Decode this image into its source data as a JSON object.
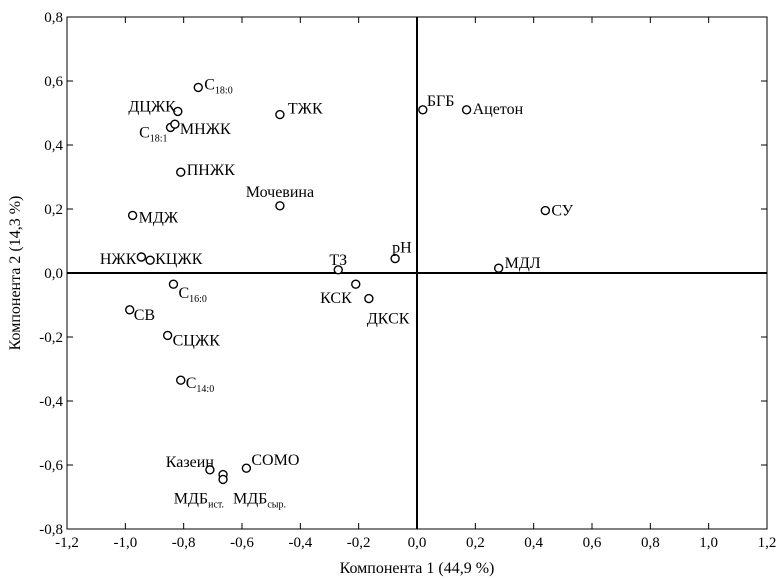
{
  "chart_data": {
    "type": "scatter",
    "xlabel": "Компонента 1 (44,9 %)",
    "ylabel": "Компонента 2 (14,3 %)",
    "xlim": [
      -1.2,
      1.2
    ],
    "ylim": [
      -0.8,
      0.8
    ],
    "x_ticks": [
      -1.2,
      -1.0,
      -0.8,
      -0.6,
      -0.4,
      -0.2,
      0.0,
      0.2,
      0.4,
      0.6,
      0.8,
      1.0,
      1.2
    ],
    "x_tick_labels": [
      "-1,2",
      "-1,0",
      "-0,8",
      "-0,6",
      "-0,4",
      "-0,2",
      "0,0",
      "0,2",
      "0,4",
      "0,6",
      "0,8",
      "1,0",
      "1,2"
    ],
    "y_ticks": [
      -0.8,
      -0.6,
      -0.4,
      -0.2,
      0.0,
      0.2,
      0.4,
      0.6,
      0.8
    ],
    "y_tick_labels": [
      "-0,8",
      "-0,6",
      "-0,4",
      "-0,2",
      "0,0",
      "0,2",
      "0,4",
      "0,6",
      "0,8"
    ],
    "grid": false,
    "reference_lines": {
      "x": 0,
      "y": 0
    },
    "points": [
      {
        "label": "С",
        "sub": "18:0",
        "x": -0.75,
        "y": 0.58
      },
      {
        "label": "ДЦЖК",
        "x": -0.82,
        "y": 0.505
      },
      {
        "label": "С",
        "sub": "18:1",
        "x": -0.845,
        "y": 0.455
      },
      {
        "label": "МНЖК",
        "x": -0.83,
        "y": 0.465
      },
      {
        "label": "ТЖК",
        "x": -0.47,
        "y": 0.495
      },
      {
        "label": "БГБ",
        "x": 0.02,
        "y": 0.51
      },
      {
        "label": "Ацетон",
        "x": 0.17,
        "y": 0.51
      },
      {
        "label": "ПНЖК",
        "x": -0.81,
        "y": 0.315
      },
      {
        "label": "Мочевина",
        "x": -0.47,
        "y": 0.21
      },
      {
        "label": "МДЖ",
        "x": -0.975,
        "y": 0.18
      },
      {
        "label": "СУ",
        "x": 0.44,
        "y": 0.195
      },
      {
        "label": "НЖК",
        "x": -0.945,
        "y": 0.05
      },
      {
        "label": "КЦЖК",
        "x": -0.915,
        "y": 0.04
      },
      {
        "label": "ТЗ",
        "x": -0.27,
        "y": 0.01
      },
      {
        "label": "pH",
        "x": -0.075,
        "y": 0.045
      },
      {
        "label": "МДЛ",
        "x": 0.28,
        "y": 0.015
      },
      {
        "label": "С",
        "sub": "16:0",
        "x": -0.835,
        "y": -0.035
      },
      {
        "label": "КСК",
        "x": -0.21,
        "y": -0.035
      },
      {
        "label": "ДКСК",
        "x": -0.165,
        "y": -0.08
      },
      {
        "label": "СВ",
        "x": -0.985,
        "y": -0.115
      },
      {
        "label": "СЦЖК",
        "x": -0.855,
        "y": -0.195
      },
      {
        "label": "С",
        "sub": "14:0",
        "x": -0.81,
        "y": -0.335
      },
      {
        "label": "Казеин",
        "x": -0.71,
        "y": -0.615
      },
      {
        "label": "СОМО",
        "x": -0.585,
        "y": -0.61
      },
      {
        "label": "МДБ",
        "sub": "ист.",
        "x": -0.665,
        "y": -0.63
      },
      {
        "label": "МДБ",
        "sub": "сыр.",
        "x": -0.665,
        "y": -0.645
      }
    ]
  }
}
